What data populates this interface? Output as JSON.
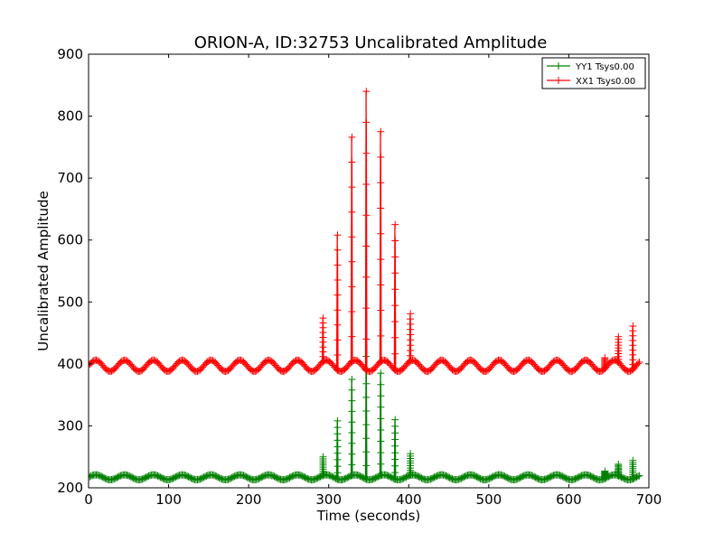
{
  "chart_data": {
    "type": "line",
    "title": "ORION-A, ID:32753 Uncalibrated Amplitude",
    "xlabel": "Time (seconds)",
    "ylabel": "Uncalibrated Amplitude",
    "xlim": [
      0,
      700
    ],
    "ylim": [
      200,
      900
    ],
    "xticks": [
      "0",
      "100",
      "200",
      "300",
      "400",
      "500",
      "600",
      "700"
    ],
    "yticks": [
      "200",
      "300",
      "400",
      "500",
      "600",
      "700",
      "800",
      "900"
    ],
    "grid": false,
    "legend_position": "top-right",
    "series": [
      {
        "name": "YY1 Tsys0.00",
        "color": "#008000",
        "baseline": 217,
        "oscillation_amplitude": 4,
        "oscillation_period": 36,
        "spikes": [
          {
            "x": 293,
            "y": 250
          },
          {
            "x": 311,
            "y": 308
          },
          {
            "x": 329,
            "y": 375
          },
          {
            "x": 347,
            "y": 412
          },
          {
            "x": 365,
            "y": 385
          },
          {
            "x": 383,
            "y": 310
          },
          {
            "x": 402,
            "y": 255
          },
          {
            "x": 645,
            "y": 227
          },
          {
            "x": 662,
            "y": 238
          },
          {
            "x": 680,
            "y": 244
          }
        ]
      },
      {
        "name": "XX1 Tsys0.00",
        "color": "#ff0000",
        "baseline": 397,
        "oscillation_amplitude": 9,
        "oscillation_period": 36,
        "spikes": [
          {
            "x": 293,
            "y": 474
          },
          {
            "x": 311,
            "y": 608
          },
          {
            "x": 329,
            "y": 766
          },
          {
            "x": 347,
            "y": 840
          },
          {
            "x": 365,
            "y": 775
          },
          {
            "x": 383,
            "y": 625
          },
          {
            "x": 402,
            "y": 481
          },
          {
            "x": 645,
            "y": 410
          },
          {
            "x": 662,
            "y": 444
          },
          {
            "x": 680,
            "y": 461
          }
        ]
      }
    ]
  }
}
